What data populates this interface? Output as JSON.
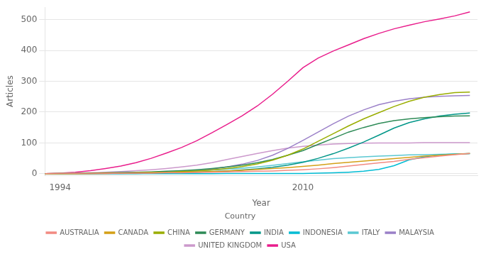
{
  "chart_data": {
    "type": "line",
    "x": [
      1993,
      1994,
      1995,
      1996,
      1997,
      1998,
      1999,
      2000,
      2001,
      2002,
      2003,
      2004,
      2005,
      2006,
      2007,
      2008,
      2009,
      2010,
      2011,
      2012,
      2013,
      2014,
      2015,
      2016,
      2017,
      2018,
      2019,
      2020,
      2021
    ],
    "series": [
      {
        "name": "AUSTRALIA",
        "color": "#f28b82",
        "values": [
          0,
          1,
          1,
          1,
          1,
          2,
          2,
          2,
          3,
          3,
          4,
          5,
          6,
          7,
          8,
          9,
          11,
          13,
          16,
          20,
          25,
          30,
          35,
          40,
          47,
          52,
          57,
          62,
          66
        ]
      },
      {
        "name": "CANADA",
        "color": "#d4a017",
        "values": [
          0,
          1,
          1,
          1,
          2,
          2,
          3,
          3,
          4,
          5,
          6,
          7,
          9,
          11,
          14,
          17,
          20,
          24,
          28,
          33,
          37,
          41,
          45,
          49,
          53,
          57,
          60,
          63,
          66
        ]
      },
      {
        "name": "CHINA",
        "color": "#9aad00",
        "values": [
          0,
          0,
          0,
          1,
          1,
          2,
          3,
          4,
          5,
          7,
          9,
          12,
          17,
          23,
          32,
          44,
          60,
          80,
          105,
          130,
          155,
          178,
          198,
          218,
          235,
          248,
          257,
          263,
          265
        ]
      },
      {
        "name": "GERMANY",
        "color": "#2e8b57",
        "values": [
          0,
          1,
          1,
          2,
          3,
          4,
          5,
          6,
          8,
          10,
          13,
          17,
          22,
          28,
          36,
          46,
          60,
          75,
          95,
          115,
          135,
          150,
          163,
          172,
          178,
          182,
          185,
          187,
          188
        ]
      },
      {
        "name": "INDIA",
        "color": "#009688",
        "values": [
          0,
          0,
          0,
          0,
          1,
          1,
          1,
          2,
          3,
          4,
          5,
          7,
          9,
          12,
          16,
          21,
          28,
          37,
          50,
          65,
          83,
          103,
          125,
          148,
          166,
          178,
          187,
          193,
          197
        ]
      },
      {
        "name": "INDONESIA",
        "color": "#00bcd4",
        "values": [
          0,
          0,
          0,
          0,
          0,
          0,
          0,
          0,
          0,
          0,
          0,
          0,
          1,
          1,
          1,
          1,
          1,
          1,
          2,
          3,
          5,
          8,
          14,
          26,
          45,
          55,
          61,
          64,
          65
        ]
      },
      {
        "name": "ITALY",
        "color": "#5bc8d2",
        "values": [
          0,
          1,
          1,
          2,
          2,
          3,
          4,
          5,
          6,
          8,
          10,
          12,
          15,
          18,
          22,
          27,
          33,
          39,
          44,
          49,
          52,
          55,
          57,
          59,
          61,
          62,
          63,
          64,
          65
        ]
      },
      {
        "name": "MALAYSIA",
        "color": "#9b80c8",
        "values": [
          0,
          0,
          0,
          0,
          1,
          1,
          2,
          3,
          5,
          7,
          10,
          15,
          22,
          31,
          43,
          60,
          82,
          108,
          135,
          162,
          187,
          207,
          224,
          235,
          243,
          248,
          251,
          253,
          254
        ]
      },
      {
        "name": "UNITED KINGDOM",
        "color": "#cc99cc",
        "values": [
          0,
          1,
          2,
          3,
          5,
          7,
          10,
          13,
          17,
          22,
          28,
          36,
          46,
          56,
          66,
          75,
          83,
          89,
          93,
          96,
          98,
          99,
          100,
          100,
          100,
          101,
          101,
          101,
          101
        ]
      },
      {
        "name": "USA",
        "color": "#e91e8c",
        "values": [
          0,
          2,
          5,
          10,
          17,
          25,
          36,
          50,
          67,
          85,
          107,
          133,
          160,
          188,
          220,
          258,
          300,
          344,
          375,
          398,
          418,
          438,
          455,
          470,
          482,
          493,
          502,
          512,
          525
        ]
      }
    ],
    "xlabel": "Year",
    "ylabel": "Articles",
    "legend_title": "Country",
    "legend": "bottom",
    "xlim": [
      1993,
      2021.5
    ],
    "xticks": [
      1994,
      2010
    ],
    "ylim": [
      -5,
      540
    ],
    "yticks": [
      0,
      100,
      200,
      300,
      400,
      500
    ],
    "grid": true
  }
}
